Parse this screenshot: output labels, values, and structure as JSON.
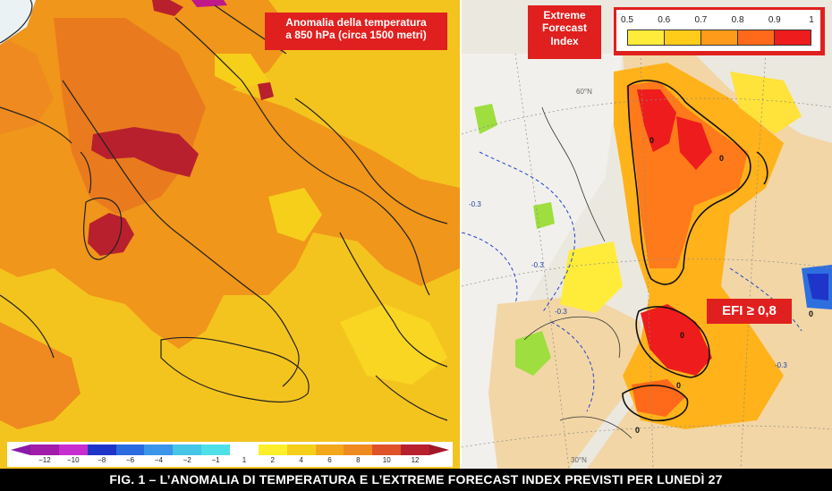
{
  "left_panel": {
    "title_line1": "Anomalia della temperatura",
    "title_line2": "a 850 hPa (circa 1500 metri)",
    "legend": {
      "ticks": [
        "−12",
        "−10",
        "−8",
        "−6",
        "−4",
        "−2",
        "−1",
        "1",
        "2",
        "4",
        "6",
        "8",
        "10",
        "12"
      ],
      "colors": [
        "#a11ca8",
        "#c62ed0",
        "#1f35c9",
        "#2a6be0",
        "#3b95e8",
        "#45c6e6",
        "#4ee0e8",
        "#ffffff",
        "#ffef2a",
        "#f6cf1a",
        "#f2a81a",
        "#ee8a1f",
        "#e0522a",
        "#b8202e"
      ]
    }
  },
  "right_panel": {
    "title_line1": "Extreme",
    "title_line2": "Forecast",
    "title_line3": "Index",
    "legend": {
      "ticks": [
        "0.5",
        "0.6",
        "0.7",
        "0.8",
        "0.9",
        "1"
      ],
      "colors": [
        "#ffec3a",
        "#ffcc1a",
        "#ff9b1a",
        "#ff6a1a",
        "#ee1c1c"
      ]
    },
    "callout": "EFI ≥ 0,8",
    "map_labels": {
      "lat_60": "60°N",
      "lat_30": "30°N",
      "neg1": "-0.3",
      "neg2": "-0.3",
      "neg3": "-0.3",
      "neg4": "-0.3",
      "zero1": "0",
      "zero2": "0",
      "zero3": "0",
      "zero4": "0",
      "zero5": "0",
      "zero6": "0"
    }
  },
  "caption": "FIG. 1 – L’ANOMALIA DI TEMPERATURA E L’EXTREME FORECAST INDEX PREVISTI PER LUNEDÌ 27"
}
